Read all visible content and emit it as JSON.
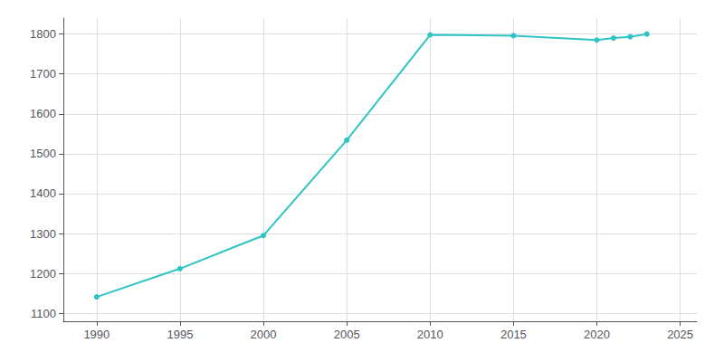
{
  "chart_data": {
    "type": "line",
    "x": [
      1990,
      1995,
      2000,
      2005,
      2010,
      2015,
      2020,
      2021,
      2022,
      2023
    ],
    "values": [
      1141,
      1212,
      1295,
      1534,
      1798,
      1796,
      1785,
      1790,
      1793,
      1800
    ],
    "color": "#2ec4c4",
    "marker": "circle",
    "xlim": [
      1988,
      2026
    ],
    "xticks": [
      1990,
      1995,
      2000,
      2005,
      2010,
      2015,
      2020,
      2025
    ],
    "ylim": [
      1080,
      1840
    ],
    "yticks": [
      1100,
      1200,
      1300,
      1400,
      1500,
      1600,
      1700,
      1800
    ],
    "grid": true
  }
}
